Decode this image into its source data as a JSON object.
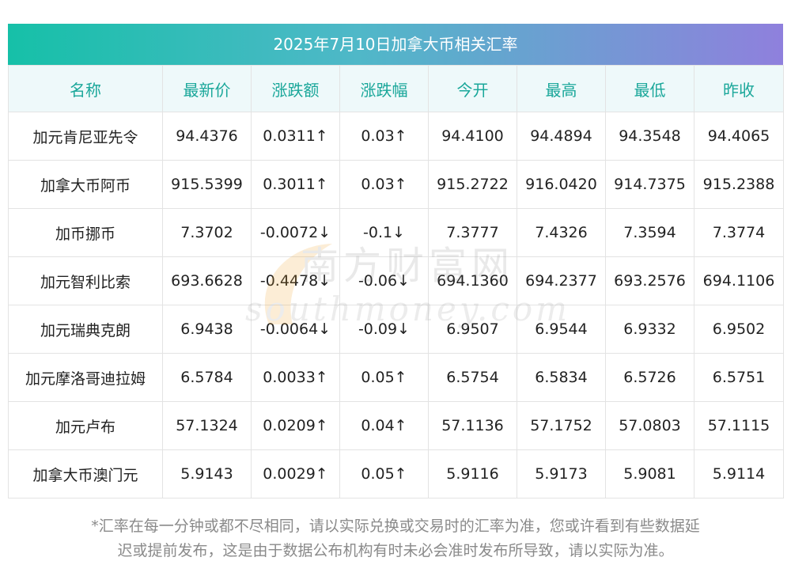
{
  "title": "2025年7月10日加拿大币相关汇率",
  "headers": [
    "名称",
    "最新价",
    "涨跌额",
    "涨跌幅",
    "今开",
    "最高",
    "最低",
    "昨收"
  ],
  "rows": [
    {
      "name": "加元肯尼亚先令",
      "latest": "94.4376",
      "change": "0.0311↑",
      "pct": "0.03↑",
      "open": "94.4100",
      "high": "94.4894",
      "low": "94.3548",
      "prev": "94.4065",
      "dir": "up"
    },
    {
      "name": "加拿大币阿币",
      "latest": "915.5399",
      "change": "0.3011↑",
      "pct": "0.03↑",
      "open": "915.2722",
      "high": "916.0420",
      "low": "914.7375",
      "prev": "915.2388",
      "dir": "up"
    },
    {
      "name": "加币挪币",
      "latest": "7.3702",
      "change": "-0.0072↓",
      "pct": "-0.1↓",
      "open": "7.3777",
      "high": "7.4326",
      "low": "7.3594",
      "prev": "7.3774",
      "dir": "down"
    },
    {
      "name": "加元智利比索",
      "latest": "693.6628",
      "change": "-0.4478↓",
      "pct": "-0.06↓",
      "open": "694.1360",
      "high": "694.2377",
      "low": "693.2576",
      "prev": "694.1106",
      "dir": "down"
    },
    {
      "name": "加元瑞典克朗",
      "latest": "6.9438",
      "change": "-0.0064↓",
      "pct": "-0.09↓",
      "open": "6.9507",
      "high": "6.9544",
      "low": "6.9332",
      "prev": "6.9502",
      "dir": "down"
    },
    {
      "name": "加元摩洛哥迪拉姆",
      "latest": "6.5784",
      "change": "0.0033↑",
      "pct": "0.05↑",
      "open": "6.5754",
      "high": "6.5834",
      "low": "6.5726",
      "prev": "6.5751",
      "dir": "up"
    },
    {
      "name": "加元卢布",
      "latest": "57.1324",
      "change": "0.0209↑",
      "pct": "0.04↑",
      "open": "57.1136",
      "high": "57.1752",
      "low": "57.0803",
      "prev": "57.1115",
      "dir": "up"
    },
    {
      "name": "加拿大币澳门元",
      "latest": "5.9143",
      "change": "0.0029↑",
      "pct": "0.05↑",
      "open": "5.9116",
      "high": "5.9173",
      "low": "5.9081",
      "prev": "5.9114",
      "dir": "up"
    }
  ],
  "watermark": {
    "cn": "南方财富网",
    "en": "southmoney.com"
  },
  "footnote": [
    "*汇率在每一分钟或都不尽相同，请以实际兑换或交易时的汇率为准，您或许看到有些数据延",
    "迟或提前发布，这是由于数据公布机构有时未必会准时发布所导致，请以实际为准。"
  ],
  "colors": {
    "up": "#e8141a",
    "down": "#1f8a1f",
    "header_text": "#1aa79a",
    "title_gradient_start": "#16c0a8",
    "title_gradient_end": "#8f80dd"
  }
}
